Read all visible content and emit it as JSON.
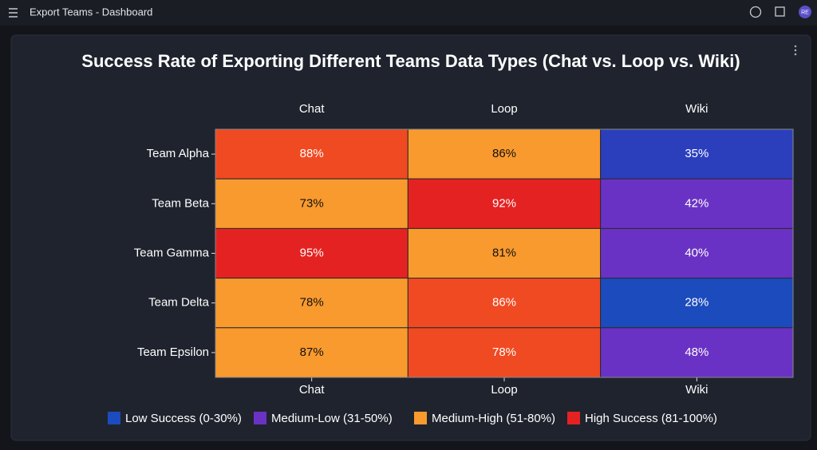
{
  "header": {
    "title": "Export Teams - Dashboard",
    "avatar": "RE"
  },
  "chart_data": {
    "type": "heatmap",
    "title": "Success Rate of Exporting Different Teams Data Types (Chat vs. Loop vs. Wiki)",
    "columns": [
      "Chat",
      "Loop",
      "Wiki"
    ],
    "rows": [
      "Team Alpha",
      "Team Beta",
      "Team Gamma",
      "Team Delta",
      "Team Epsilon"
    ],
    "values": [
      [
        88,
        86,
        35
      ],
      [
        73,
        92,
        42
      ],
      [
        95,
        81,
        40
      ],
      [
        78,
        86,
        28
      ],
      [
        87,
        78,
        48
      ]
    ],
    "value_labels": [
      [
        "88%",
        "86%",
        "35%"
      ],
      [
        "73%",
        "92%",
        "42%"
      ],
      [
        "95%",
        "81%",
        "40%"
      ],
      [
        "78%",
        "86%",
        "28%"
      ],
      [
        "87%",
        "78%",
        "48%"
      ]
    ],
    "cell_colors": [
      [
        "#f04a23",
        "#f99a2e",
        "#2b3fbd"
      ],
      [
        "#f99a2e",
        "#e52222",
        "#6a32c4"
      ],
      [
        "#e52222",
        "#f99a2e",
        "#6a32c4"
      ],
      [
        "#f99a2e",
        "#f04a23",
        "#1b4bbd"
      ],
      [
        "#f99a2e",
        "#f04a23",
        "#6a32c4"
      ]
    ],
    "legend": [
      {
        "label": "Low Success (0-30%)",
        "color": "#1b4bbd"
      },
      {
        "label": "Medium-Low (31-50%)",
        "color": "#6a32c4"
      },
      {
        "label": "Medium-High (51-80%)",
        "color": "#f99a2e"
      },
      {
        "label": "High Success (81-100%)",
        "color": "#e52222"
      }
    ]
  }
}
